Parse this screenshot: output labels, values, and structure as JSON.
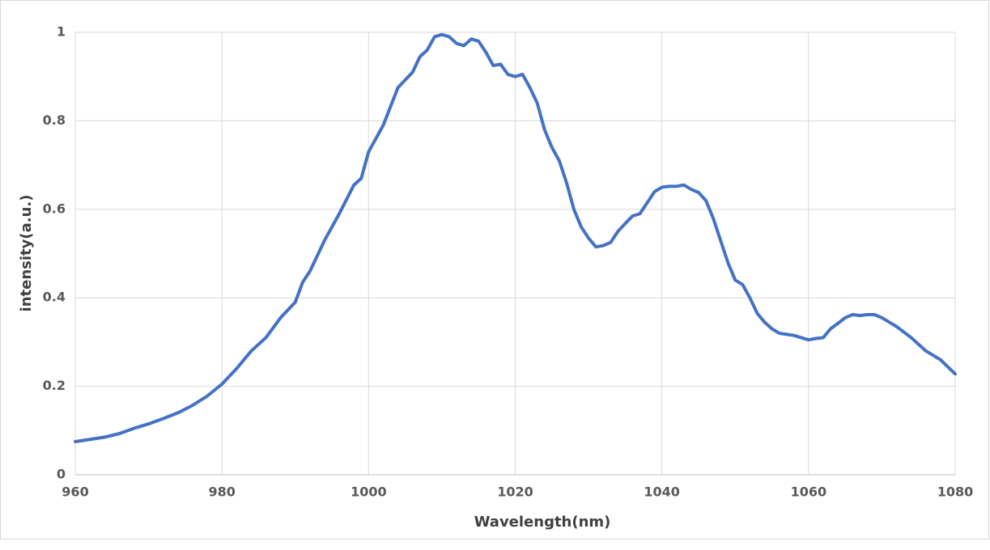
{
  "chart_data": {
    "type": "line",
    "xlabel": "Wavelength(nm)",
    "ylabel": "intensity(a.u.)",
    "x": [
      960,
      962,
      964,
      966,
      968,
      970,
      972,
      974,
      976,
      978,
      980,
      982,
      984,
      986,
      988,
      990,
      991,
      992,
      994,
      996,
      998,
      999,
      1000,
      1002,
      1004,
      1006,
      1007,
      1008,
      1009,
      1010,
      1011,
      1012,
      1013,
      1014,
      1015,
      1016,
      1017,
      1018,
      1019,
      1020,
      1021,
      1022,
      1023,
      1024,
      1025,
      1026,
      1027,
      1028,
      1029,
      1030,
      1031,
      1032,
      1033,
      1034,
      1035,
      1036,
      1037,
      1038,
      1039,
      1040,
      1041,
      1042,
      1043,
      1044,
      1045,
      1046,
      1047,
      1048,
      1049,
      1050,
      1051,
      1052,
      1053,
      1054,
      1055,
      1056,
      1058,
      1060,
      1061,
      1062,
      1063,
      1064,
      1065,
      1066,
      1067,
      1068,
      1069,
      1070,
      1071,
      1072,
      1074,
      1076,
      1078,
      1080
    ],
    "values": [
      0.075,
      0.08,
      0.085,
      0.093,
      0.105,
      0.115,
      0.127,
      0.14,
      0.157,
      0.178,
      0.205,
      0.24,
      0.28,
      0.31,
      0.355,
      0.39,
      0.435,
      0.46,
      0.53,
      0.59,
      0.655,
      0.67,
      0.73,
      0.79,
      0.875,
      0.91,
      0.945,
      0.96,
      0.99,
      0.995,
      0.99,
      0.975,
      0.97,
      0.985,
      0.98,
      0.955,
      0.925,
      0.928,
      0.905,
      0.9,
      0.905,
      0.875,
      0.84,
      0.78,
      0.74,
      0.71,
      0.66,
      0.6,
      0.56,
      0.535,
      0.515,
      0.518,
      0.525,
      0.55,
      0.568,
      0.585,
      0.59,
      0.615,
      0.64,
      0.65,
      0.652,
      0.652,
      0.655,
      0.645,
      0.638,
      0.62,
      0.58,
      0.53,
      0.48,
      0.44,
      0.43,
      0.4,
      0.365,
      0.345,
      0.33,
      0.32,
      0.315,
      0.305,
      0.308,
      0.31,
      0.33,
      0.342,
      0.355,
      0.362,
      0.36,
      0.362,
      0.362,
      0.355,
      0.345,
      0.335,
      0.31,
      0.28,
      0.26,
      0.228
    ],
    "color": "#4472c4",
    "xlim": [
      960,
      1080
    ],
    "xticks": [
      960,
      980,
      1000,
      1020,
      1040,
      1060,
      1080
    ],
    "ylim": [
      0,
      1
    ],
    "yticks": [
      0,
      0.2,
      0.4,
      0.6,
      0.8,
      1
    ],
    "grid": true
  }
}
